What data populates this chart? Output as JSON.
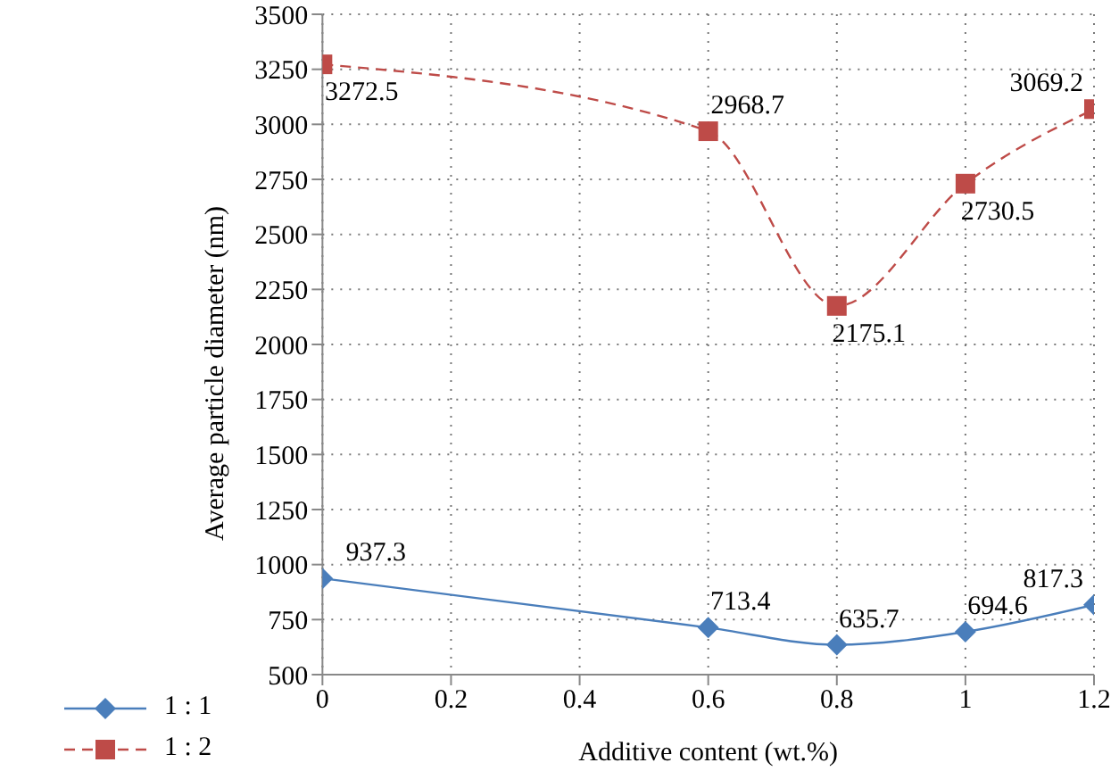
{
  "chart_data": {
    "type": "line",
    "xlabel": "Additive content (wt.%)",
    "ylabel": "Average particle diameter (nm)",
    "x": [
      0,
      0.6,
      0.8,
      1,
      1.2
    ],
    "series": [
      {
        "name": "1 : 1",
        "color": "#4a7ebb",
        "values": [
          937.3,
          713.4,
          635.7,
          694.6,
          817.3
        ],
        "marker": "diamond",
        "line_style": "solid"
      },
      {
        "name": "1 : 2",
        "color": "#be4b48",
        "values": [
          3272.5,
          2968.7,
          2175.1,
          2730.5,
          3069.2
        ],
        "marker": "square",
        "line_style": "dashed"
      }
    ],
    "xlim": [
      0,
      1.2
    ],
    "xticks": [
      0,
      0.2,
      0.4,
      0.6,
      0.8,
      1,
      1.2
    ],
    "ylim": [
      500,
      3500
    ],
    "yticks": [
      500,
      750,
      1000,
      1250,
      1500,
      1750,
      2000,
      2250,
      2500,
      2750,
      3000,
      3250,
      3500
    ],
    "grid": true,
    "legend": "bottom left",
    "data_labels": true
  }
}
